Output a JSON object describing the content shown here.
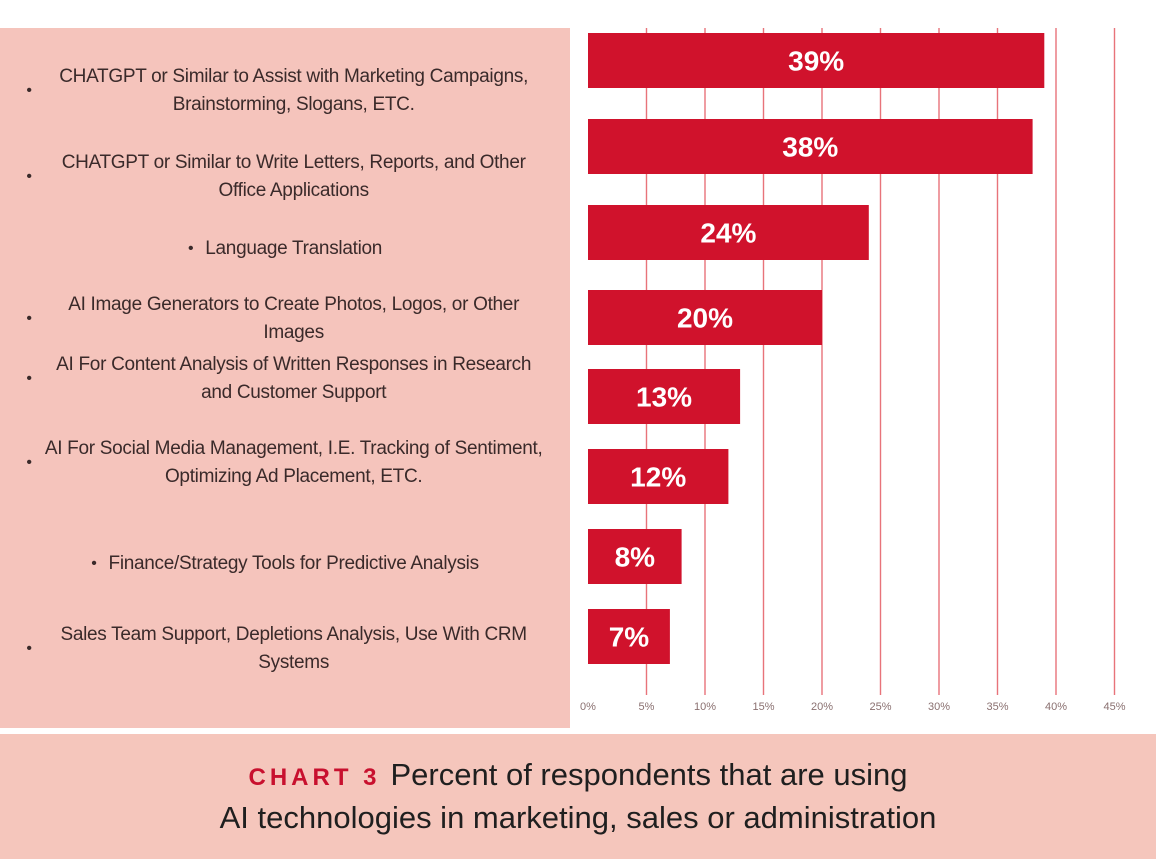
{
  "chart_data": {
    "type": "bar",
    "orientation": "horizontal",
    "categories": [
      "CHATGPT or Similar to Assist with Marketing Campaigns, Brainstorming, Slogans, ETC.",
      "CHATGPT or Similar to Write Letters, Reports, and Other Office Applications",
      "Language Translation",
      "AI Image Generators to Create Photos, Logos, or Other Images",
      "AI For Content Analysis of Written Responses in Research and Customer Support",
      "AI For Social Media Management, I.E. Tracking of Sentiment, Optimizing Ad Placement, ETC.",
      "Finance/Strategy Tools for Predictive Analysis",
      "Sales Team Support, Depletions Analysis, Use With CRM Systems"
    ],
    "values": [
      39,
      38,
      24,
      20,
      13,
      12,
      8,
      7
    ],
    "value_labels": [
      "39%",
      "38%",
      "24%",
      "20%",
      "13%",
      "12%",
      "8%",
      "7%"
    ],
    "xlim": [
      0,
      45
    ],
    "xticks": [
      0,
      5,
      10,
      15,
      20,
      25,
      30,
      35,
      40,
      45
    ],
    "xtick_labels": [
      "0%",
      "5%",
      "10%",
      "15%",
      "20%",
      "25%",
      "30%",
      "35%",
      "40%",
      "45%"
    ],
    "bar_color": "#d0122c",
    "grid_color": "#e8737a"
  },
  "caption": {
    "tag": "CHART 3",
    "line1": "Percent of respondents that are using",
    "line2": "AI technologies in marketing, sales or administration"
  }
}
